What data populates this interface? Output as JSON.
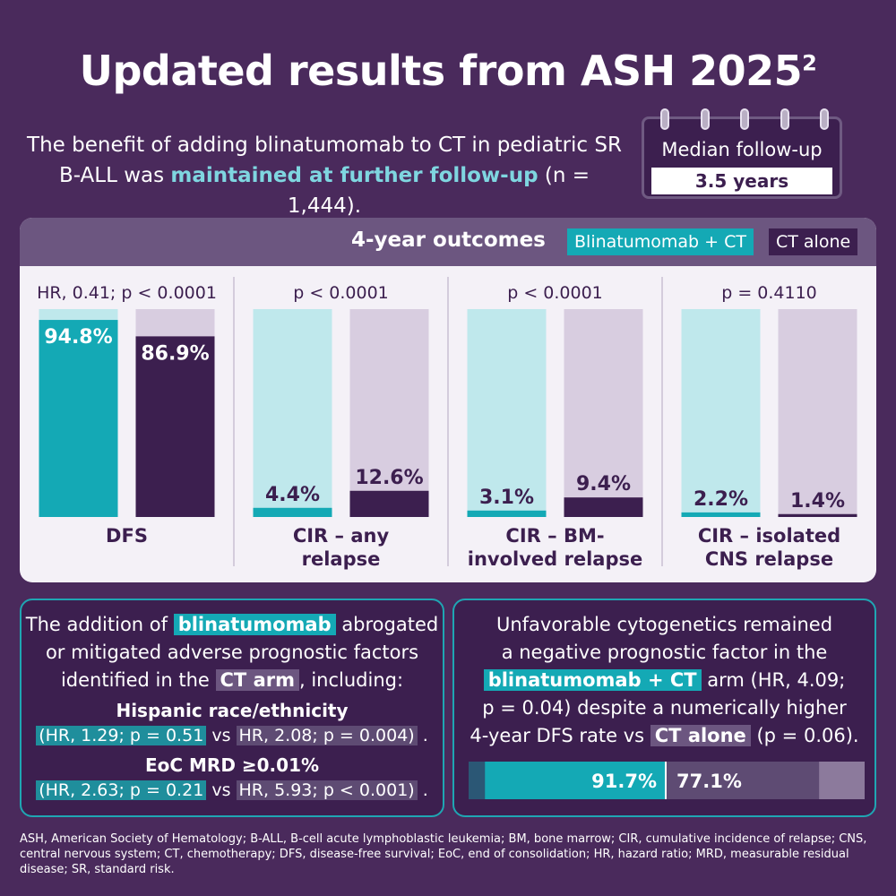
{
  "title": "Updated results from ASH 2025",
  "title_sup": "2",
  "intro": {
    "part1": "The benefit of adding blinatumomab to CT in pediatric SR B-ALL was ",
    "highlight": "maintained at further follow-up",
    "part2": " (n = 1,444)."
  },
  "calendar": {
    "label": "Median follow-up",
    "value": "3.5 years"
  },
  "panel": {
    "title": "4-year outcomes",
    "legend_blin": "Blinatumomab + CT",
    "legend_ct": "CT alone"
  },
  "colors": {
    "blin": "#14a9b5",
    "blin_light": "#bfe8ec",
    "ct": "#3c1f4f",
    "ct_light": "#d8cde0",
    "text_dark": "#3c1f4f"
  },
  "chart_data": {
    "type": "bar",
    "title": "4-year outcomes",
    "series_names": [
      "Blinatumomab + CT",
      "CT alone"
    ],
    "ylim": [
      0,
      100
    ],
    "groups": [
      {
        "label_lines": [
          "DFS"
        ],
        "stat": "HR, 0.41; p < 0.0001",
        "values": [
          94.8,
          86.9
        ],
        "labels": [
          "94.8%",
          "86.9%"
        ]
      },
      {
        "label_lines": [
          "CIR – any",
          "relapse"
        ],
        "stat": "p < 0.0001",
        "values": [
          4.4,
          12.6
        ],
        "labels": [
          "4.4%",
          "12.6%"
        ]
      },
      {
        "label_lines": [
          "CIR – BM-",
          "involved relapse"
        ],
        "stat": "p < 0.0001",
        "values": [
          3.1,
          9.4
        ],
        "labels": [
          "3.1%",
          "9.4%"
        ]
      },
      {
        "label_lines": [
          "CIR – isolated",
          "CNS relapse"
        ],
        "stat": "p = 0.4110",
        "values": [
          2.2,
          1.4
        ],
        "labels": [
          "2.2%",
          "1.4%"
        ]
      }
    ],
    "dfs_subgroup": {
      "type": "bar",
      "metric": "4-year DFS rate (unfavorable cytogenetics)",
      "values": [
        91.7,
        77.1
      ],
      "labels": [
        "91.7%",
        "77.1%"
      ],
      "series_names": [
        "blinatumomab + CT",
        "CT alone"
      ]
    }
  },
  "left_box": {
    "l1a": "The addition of ",
    "l1tag": "blinatumomab",
    "l1b": " abrogated",
    "l2": "or mitigated adverse prognostic factors",
    "l3a": "identified in the ",
    "l3tag": "CT arm",
    "l3b": ", including:",
    "h1": "Hispanic race/ethnicity",
    "h1_blin": "(HR, 1.29; p = 0.51",
    "h1_vs": " vs ",
    "h1_ct": "HR, 2.08; p = 0.004)",
    "h1_end": " .",
    "h2": "EoC MRD ≥0.01%",
    "h2_blin": "(HR, 2.63; p = 0.21",
    "h2_vs": " vs ",
    "h2_ct": "HR, 5.93; p < 0.001)",
    "h2_end": " ."
  },
  "right_box": {
    "l1": "Unfavorable cytogenetics remained",
    "l2": "a negative prognostic factor in the",
    "l3tag": "blinatumomab + CT",
    "l3b": " arm (HR, 4.09;",
    "l4": "p = 0.04) despite a numerically higher",
    "l5a": "4-year DFS rate vs ",
    "l5tag": "CT alone",
    "l5b": " (p = 0.06)."
  },
  "footer": "ASH, American Society of Hematology; B-ALL, B-cell acute lymphoblastic leukemia; BM, bone marrow; CIR, cumulative incidence of relapse; CNS, central nervous system; CT, chemotherapy; DFS, disease-free survival; EoC, end of consolidation; HR, hazard ratio; MRD, measurable residual disease; SR, standard risk."
}
